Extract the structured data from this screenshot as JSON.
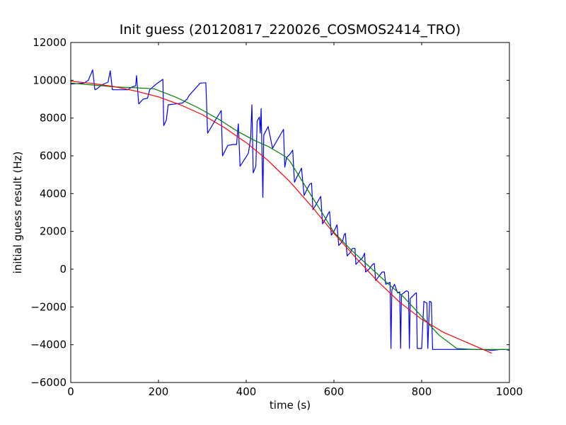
{
  "chart_data": {
    "type": "line",
    "title": "Init guess (20120817_220026_COSMOS2414_TRO)",
    "xlabel": "time (s)",
    "ylabel": "initial guess result (Hz)",
    "xlim": [
      0,
      1000
    ],
    "ylim": [
      -6000,
      12000
    ],
    "x_ticks": [
      0,
      200,
      400,
      600,
      800,
      1000
    ],
    "y_ticks": [
      -6000,
      -4000,
      -2000,
      0,
      2000,
      4000,
      6000,
      8000,
      10000,
      12000
    ],
    "x_tick_labels": [
      "0",
      "200",
      "400",
      "600",
      "800",
      "1000"
    ],
    "y_tick_labels": [
      "−6000",
      "−4000",
      "−2000",
      "0",
      "2000",
      "4000",
      "6000",
      "8000",
      "10000",
      "12000"
    ],
    "grid": false,
    "legend": "none",
    "series": [
      {
        "color": "#0000ff",
        "points": [
          [
            0,
            9800
          ],
          [
            30,
            9850
          ],
          [
            40,
            10000
          ],
          [
            50,
            10550
          ],
          [
            55,
            9500
          ],
          [
            60,
            9550
          ],
          [
            70,
            9750
          ],
          [
            85,
            9900
          ],
          [
            90,
            10500
          ],
          [
            95,
            9500
          ],
          [
            130,
            9500
          ],
          [
            140,
            9650
          ],
          [
            148,
            9700
          ],
          [
            150,
            10250
          ],
          [
            155,
            8750
          ],
          [
            165,
            9000
          ],
          [
            175,
            9050
          ],
          [
            180,
            9500
          ],
          [
            195,
            9800
          ],
          [
            210,
            10050
          ],
          [
            212,
            7600
          ],
          [
            218,
            7900
          ],
          [
            222,
            8700
          ],
          [
            240,
            8750
          ],
          [
            255,
            8800
          ],
          [
            265,
            9000
          ],
          [
            270,
            9200
          ],
          [
            295,
            9850
          ],
          [
            308,
            9870
          ],
          [
            312,
            7200
          ],
          [
            330,
            7900
          ],
          [
            343,
            8400
          ],
          [
            346,
            6000
          ],
          [
            358,
            6550
          ],
          [
            370,
            6600
          ],
          [
            378,
            6600
          ],
          [
            382,
            7700
          ],
          [
            386,
            5450
          ],
          [
            400,
            5950
          ],
          [
            405,
            6150
          ],
          [
            410,
            6900
          ],
          [
            413,
            8700
          ],
          [
            416,
            5100
          ],
          [
            422,
            5450
          ],
          [
            425,
            7850
          ],
          [
            430,
            8050
          ],
          [
            432,
            7200
          ],
          [
            434,
            8500
          ],
          [
            438,
            3800
          ],
          [
            440,
            7100
          ],
          [
            450,
            7550
          ],
          [
            460,
            6400
          ],
          [
            470,
            6800
          ],
          [
            480,
            7200
          ],
          [
            485,
            7400
          ],
          [
            488,
            5400
          ],
          [
            492,
            5900
          ],
          [
            500,
            6100
          ],
          [
            506,
            6300
          ],
          [
            510,
            4600
          ],
          [
            516,
            4900
          ],
          [
            522,
            5150
          ],
          [
            526,
            5350
          ],
          [
            532,
            3900
          ],
          [
            540,
            4300
          ],
          [
            545,
            4500
          ],
          [
            549,
            4550
          ],
          [
            552,
            3150
          ],
          [
            560,
            3450
          ],
          [
            566,
            3700
          ],
          [
            570,
            3850
          ],
          [
            574,
            2400
          ],
          [
            582,
            2700
          ],
          [
            587,
            2950
          ],
          [
            590,
            3050
          ],
          [
            594,
            1800
          ],
          [
            600,
            2000
          ],
          [
            605,
            2250
          ],
          [
            607,
            2350
          ],
          [
            611,
            1250
          ],
          [
            620,
            1500
          ],
          [
            623,
            1800
          ],
          [
            626,
            1900
          ],
          [
            630,
            700
          ],
          [
            638,
            900
          ],
          [
            642,
            1100
          ],
          [
            648,
            1100
          ],
          [
            650,
            250
          ],
          [
            658,
            450
          ],
          [
            665,
            600
          ],
          [
            670,
            850
          ],
          [
            672,
            -150
          ],
          [
            680,
            0
          ],
          [
            688,
            250
          ],
          [
            692,
            300
          ],
          [
            695,
            -600
          ],
          [
            702,
            -400
          ],
          [
            710,
            -150
          ],
          [
            715,
            -150
          ],
          [
            718,
            -800
          ],
          [
            728,
            -700
          ],
          [
            730,
            -4200
          ],
          [
            732,
            -1100
          ],
          [
            738,
            -800
          ],
          [
            745,
            -1250
          ],
          [
            750,
            -1200
          ],
          [
            752,
            -4200
          ],
          [
            754,
            -1350
          ],
          [
            762,
            -1200
          ],
          [
            765,
            -1150
          ],
          [
            770,
            -1200
          ],
          [
            772,
            -4200
          ],
          [
            774,
            -1550
          ],
          [
            785,
            -1300
          ],
          [
            788,
            -1250
          ],
          [
            790,
            -4200
          ],
          [
            800,
            -4200
          ],
          [
            805,
            -1700
          ],
          [
            812,
            -1800
          ],
          [
            814,
            -4200
          ],
          [
            818,
            -1700
          ],
          [
            822,
            -1750
          ],
          [
            825,
            -4250
          ],
          [
            870,
            -4250
          ],
          [
            900,
            -4250
          ],
          [
            940,
            -4250
          ],
          [
            960,
            -4300
          ],
          [
            980,
            -4250
          ],
          [
            992,
            -4250
          ],
          [
            1000,
            -4300
          ]
        ]
      },
      {
        "color": "#008000",
        "points": [
          [
            0,
            9850
          ],
          [
            100,
            9650
          ],
          [
            150,
            9600
          ],
          [
            190,
            9550
          ],
          [
            240,
            9100
          ],
          [
            290,
            8550
          ],
          [
            340,
            7900
          ],
          [
            380,
            7300
          ],
          [
            420,
            6800
          ],
          [
            450,
            6500
          ],
          [
            490,
            5950
          ],
          [
            500,
            5700
          ],
          [
            540,
            4200
          ],
          [
            570,
            3100
          ],
          [
            600,
            1950
          ],
          [
            640,
            1000
          ],
          [
            680,
            150
          ],
          [
            720,
            -700
          ],
          [
            760,
            -1500
          ],
          [
            800,
            -2500
          ],
          [
            840,
            -3500
          ],
          [
            880,
            -4200
          ],
          [
            920,
            -4250
          ],
          [
            1000,
            -4250
          ]
        ]
      },
      {
        "color": "#ff0000",
        "points": [
          [
            0,
            9950
          ],
          [
            50,
            9830
          ],
          [
            100,
            9660
          ],
          [
            150,
            9420
          ],
          [
            200,
            9120
          ],
          [
            250,
            8700
          ],
          [
            300,
            8180
          ],
          [
            350,
            7500
          ],
          [
            400,
            6700
          ],
          [
            450,
            5750
          ],
          [
            500,
            4620
          ],
          [
            550,
            3300
          ],
          [
            600,
            1900
          ],
          [
            650,
            600
          ],
          [
            700,
            -650
          ],
          [
            750,
            -1750
          ],
          [
            800,
            -2650
          ],
          [
            850,
            -3350
          ],
          [
            900,
            -3850
          ],
          [
            960,
            -4450
          ]
        ]
      }
    ]
  }
}
